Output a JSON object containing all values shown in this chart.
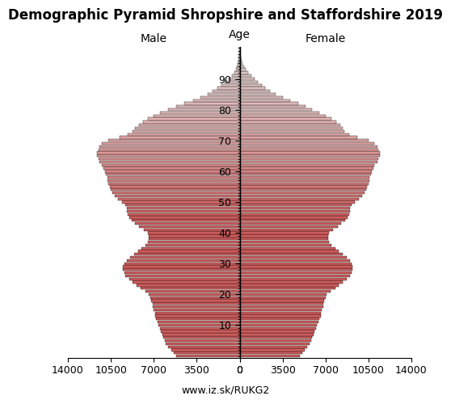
{
  "title": "Demographic Pyramid Shropshire and Staffordshire 2019",
  "male_label": "Male",
  "female_label": "Female",
  "age_label": "Age",
  "footer": "www.iz.sk/RUKG2",
  "xlim": 14000,
  "xticks": [
    0,
    3500,
    7000,
    10500,
    14000
  ],
  "age_ticks": [
    10,
    20,
    30,
    40,
    50,
    60,
    70,
    80,
    90
  ],
  "male": [
    5200,
    5400,
    5600,
    5800,
    6000,
    6100,
    6200,
    6300,
    6400,
    6500,
    6600,
    6700,
    6800,
    6900,
    6900,
    7000,
    7100,
    7100,
    7200,
    7300,
    7400,
    7700,
    8100,
    8400,
    8700,
    9000,
    9300,
    9400,
    9500,
    9500,
    9400,
    9200,
    8900,
    8600,
    8300,
    8000,
    7700,
    7500,
    7400,
    7400,
    7500,
    7800,
    8200,
    8500,
    8800,
    9000,
    9100,
    9200,
    9200,
    9300,
    9600,
    9900,
    10200,
    10400,
    10500,
    10600,
    10700,
    10800,
    10800,
    10900,
    11000,
    11100,
    11200,
    11400,
    11500,
    11600,
    11600,
    11500,
    11400,
    11200,
    10700,
    9800,
    9100,
    8700,
    8500,
    8200,
    7900,
    7500,
    7000,
    6500,
    5800,
    5200,
    4500,
    3800,
    3200,
    2600,
    2200,
    1800,
    1500,
    1200,
    900,
    650,
    450,
    320,
    220,
    160,
    110,
    70,
    45,
    25,
    12
  ],
  "female": [
    4900,
    5100,
    5300,
    5500,
    5700,
    5800,
    5900,
    6000,
    6100,
    6200,
    6300,
    6400,
    6500,
    6600,
    6600,
    6700,
    6800,
    6800,
    6900,
    7000,
    7100,
    7400,
    7800,
    8100,
    8400,
    8700,
    9000,
    9100,
    9200,
    9200,
    9100,
    9000,
    8700,
    8400,
    8100,
    7800,
    7500,
    7300,
    7200,
    7200,
    7300,
    7600,
    8000,
    8300,
    8600,
    8800,
    8900,
    9000,
    9000,
    9100,
    9400,
    9700,
    10000,
    10200,
    10300,
    10400,
    10500,
    10600,
    10600,
    10700,
    10800,
    10900,
    11000,
    11200,
    11300,
    11400,
    11400,
    11300,
    11200,
    11000,
    10500,
    9600,
    8900,
    8500,
    8400,
    8200,
    7900,
    7500,
    7000,
    6500,
    5900,
    5400,
    4800,
    4100,
    3500,
    2900,
    2500,
    2100,
    1800,
    1500,
    1200,
    950,
    680,
    500,
    340,
    250,
    170,
    100,
    65,
    35,
    18
  ],
  "background_color": "#ffffff",
  "title_fontsize": 12,
  "label_fontsize": 10,
  "tick_fontsize": 9,
  "footer_fontsize": 9
}
